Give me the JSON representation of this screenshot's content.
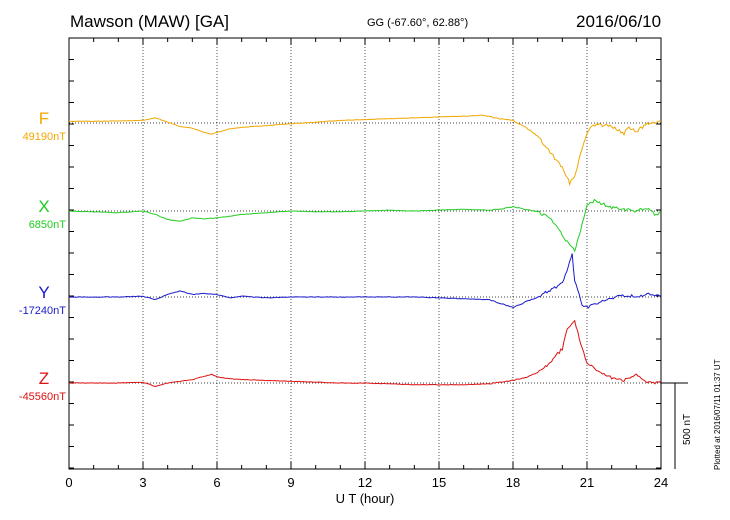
{
  "header": {
    "station": "Mawson (MAW)  [GA]",
    "coords": "GG (-67.60°,  62.88°)",
    "date": "2016/06/10"
  },
  "footer": {
    "plotted_note": "Plotted at 2016/07/11 01:37 UT"
  },
  "chart_data": {
    "type": "line",
    "title": "Mawson (MAW)  [GA]",
    "xlabel": "U T (hour)",
    "x_ticks": [
      "0",
      "3",
      "6",
      "9",
      "12",
      "15",
      "18",
      "21",
      "24"
    ],
    "xlim": [
      0,
      24
    ],
    "grid": true,
    "scale_bar": {
      "label": "500 nT",
      "value": 500
    },
    "series": [
      {
        "name": "F",
        "baseline_label": "49190nT",
        "color": "#f0a800",
        "points": [
          [
            0,
            -10
          ],
          [
            1,
            -10
          ],
          [
            2,
            -12
          ],
          [
            3,
            -15
          ],
          [
            3.5,
            -30
          ],
          [
            4,
            -5
          ],
          [
            4.5,
            20
          ],
          [
            5,
            30
          ],
          [
            5.5,
            55
          ],
          [
            5.8,
            65
          ],
          [
            6,
            55
          ],
          [
            6.5,
            35
          ],
          [
            7,
            25
          ],
          [
            8,
            15
          ],
          [
            9,
            5
          ],
          [
            10,
            -5
          ],
          [
            11,
            -15
          ],
          [
            12,
            -20
          ],
          [
            13,
            -25
          ],
          [
            14,
            -30
          ],
          [
            15,
            -35
          ],
          [
            16,
            -40
          ],
          [
            16.8,
            -45
          ],
          [
            17.5,
            -25
          ],
          [
            18,
            -15
          ],
          [
            18.5,
            25
          ],
          [
            19,
            75
          ],
          [
            19.5,
            170
          ],
          [
            20,
            260
          ],
          [
            20.3,
            350
          ],
          [
            20.5,
            310
          ],
          [
            20.8,
            150
          ],
          [
            21,
            60
          ],
          [
            21.2,
            20
          ],
          [
            21.5,
            10
          ],
          [
            22,
            20
          ],
          [
            22.5,
            60
          ],
          [
            22.7,
            25
          ],
          [
            23,
            50
          ],
          [
            23.5,
            0
          ],
          [
            24,
            -10
          ]
        ]
      },
      {
        "name": "X",
        "baseline_label": "6850nT",
        "color": "#22cc22",
        "points": [
          [
            0,
            0
          ],
          [
            1,
            5
          ],
          [
            2,
            10
          ],
          [
            3,
            0
          ],
          [
            3.5,
            20
          ],
          [
            4,
            50
          ],
          [
            4.5,
            60
          ],
          [
            5,
            40
          ],
          [
            5.5,
            45
          ],
          [
            6,
            40
          ],
          [
            7,
            20
          ],
          [
            8,
            10
          ],
          [
            9,
            0
          ],
          [
            10,
            5
          ],
          [
            11,
            5
          ],
          [
            12,
            0
          ],
          [
            13,
            -5
          ],
          [
            14,
            0
          ],
          [
            15,
            -5
          ],
          [
            16,
            -10
          ],
          [
            17,
            -5
          ],
          [
            17.5,
            -10
          ],
          [
            18,
            -25
          ],
          [
            18.5,
            -10
          ],
          [
            19,
            5
          ],
          [
            19.5,
            40
          ],
          [
            20,
            140
          ],
          [
            20.2,
            180
          ],
          [
            20.5,
            230
          ],
          [
            20.8,
            80
          ],
          [
            21,
            -40
          ],
          [
            21.3,
            -60
          ],
          [
            21.5,
            -50
          ],
          [
            22,
            -20
          ],
          [
            22.5,
            -10
          ],
          [
            23,
            0
          ],
          [
            23.5,
            -20
          ],
          [
            23.8,
            25
          ],
          [
            24,
            0
          ]
        ]
      },
      {
        "name": "Y",
        "baseline_label": "-17240nT",
        "color": "#1a1acc",
        "points": [
          [
            0,
            0
          ],
          [
            1,
            0
          ],
          [
            2,
            0
          ],
          [
            3,
            -5
          ],
          [
            3.5,
            15
          ],
          [
            4,
            -15
          ],
          [
            4.5,
            -35
          ],
          [
            5,
            -15
          ],
          [
            5.5,
            -20
          ],
          [
            6,
            -15
          ],
          [
            6.5,
            5
          ],
          [
            7,
            -5
          ],
          [
            8,
            5
          ],
          [
            9,
            0
          ],
          [
            10,
            0
          ],
          [
            11,
            0
          ],
          [
            12,
            0
          ],
          [
            13,
            0
          ],
          [
            14,
            0
          ],
          [
            15,
            5
          ],
          [
            16,
            10
          ],
          [
            17,
            15
          ],
          [
            18,
            60
          ],
          [
            18.5,
            30
          ],
          [
            19,
            0
          ],
          [
            19.5,
            -40
          ],
          [
            20,
            -80
          ],
          [
            20.3,
            -200
          ],
          [
            20.4,
            -250
          ],
          [
            20.5,
            -100
          ],
          [
            20.8,
            40
          ],
          [
            21,
            60
          ],
          [
            21.5,
            30
          ],
          [
            22,
            10
          ],
          [
            22.5,
            -10
          ],
          [
            23,
            0
          ],
          [
            23.5,
            -20
          ],
          [
            24,
            0
          ]
        ]
      },
      {
        "name": "Z",
        "baseline_label": "-45560nT",
        "color": "#dd1111",
        "points": [
          [
            0,
            0
          ],
          [
            1,
            0
          ],
          [
            2,
            0
          ],
          [
            3,
            -5
          ],
          [
            3.5,
            20
          ],
          [
            4,
            0
          ],
          [
            4.5,
            -10
          ],
          [
            5,
            -20
          ],
          [
            5.5,
            -40
          ],
          [
            5.8,
            -50
          ],
          [
            6,
            -35
          ],
          [
            6.5,
            -25
          ],
          [
            7,
            -20
          ],
          [
            8,
            -15
          ],
          [
            9,
            -10
          ],
          [
            10,
            -5
          ],
          [
            11,
            0
          ],
          [
            12,
            0
          ],
          [
            13,
            5
          ],
          [
            14,
            10
          ],
          [
            15,
            10
          ],
          [
            16,
            10
          ],
          [
            17,
            5
          ],
          [
            18,
            -15
          ],
          [
            18.5,
            -30
          ],
          [
            19,
            -60
          ],
          [
            19.5,
            -120
          ],
          [
            20,
            -200
          ],
          [
            20.2,
            -310
          ],
          [
            20.5,
            -360
          ],
          [
            20.8,
            -200
          ],
          [
            21,
            -120
          ],
          [
            21.5,
            -60
          ],
          [
            22,
            -30
          ],
          [
            22.5,
            -15
          ],
          [
            23,
            -50
          ],
          [
            23.5,
            -5
          ],
          [
            24,
            0
          ]
        ]
      }
    ]
  }
}
